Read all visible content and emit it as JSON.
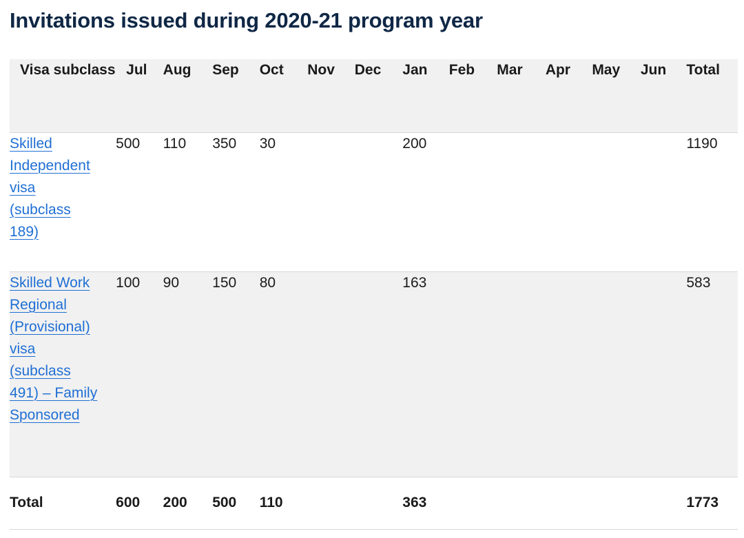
{
  "page": {
    "title": "Invitations issued during 2020-21 program year"
  },
  "table": {
    "headers": [
      "Visa subclass",
      "Jul",
      "Aug",
      "Sep",
      "Oct",
      "Nov",
      "Dec",
      "Jan",
      "Feb",
      "Mar",
      "Apr",
      "May",
      "Jun",
      "Total"
    ],
    "rows": [
      {
        "visa": "Skilled Independent visa (subclass 189)",
        "values": [
          "500",
          "110",
          "350",
          "30",
          "",
          "",
          "200",
          "",
          "",
          "",
          "",
          "",
          "1190"
        ]
      },
      {
        "visa": "Skilled Work Regional (Provisional) visa (subclass 491) – Family Sponsored",
        "values": [
          "100",
          "90",
          "150",
          "80",
          "",
          "",
          "163",
          "",
          "",
          "",
          "",
          "",
          "583"
        ]
      }
    ],
    "total_row": {
      "label": "Total",
      "values": [
        "600",
        "200",
        "500",
        "110",
        "",
        "",
        "363",
        "",
        "",
        "",
        "",
        "",
        "1773"
      ]
    }
  },
  "colors": {
    "title": "#0f2745",
    "link": "#1f6fd4",
    "header_bg": "#f1f1f1",
    "stripe_bg": "#f1f1f1",
    "border": "#d6d6d6"
  }
}
